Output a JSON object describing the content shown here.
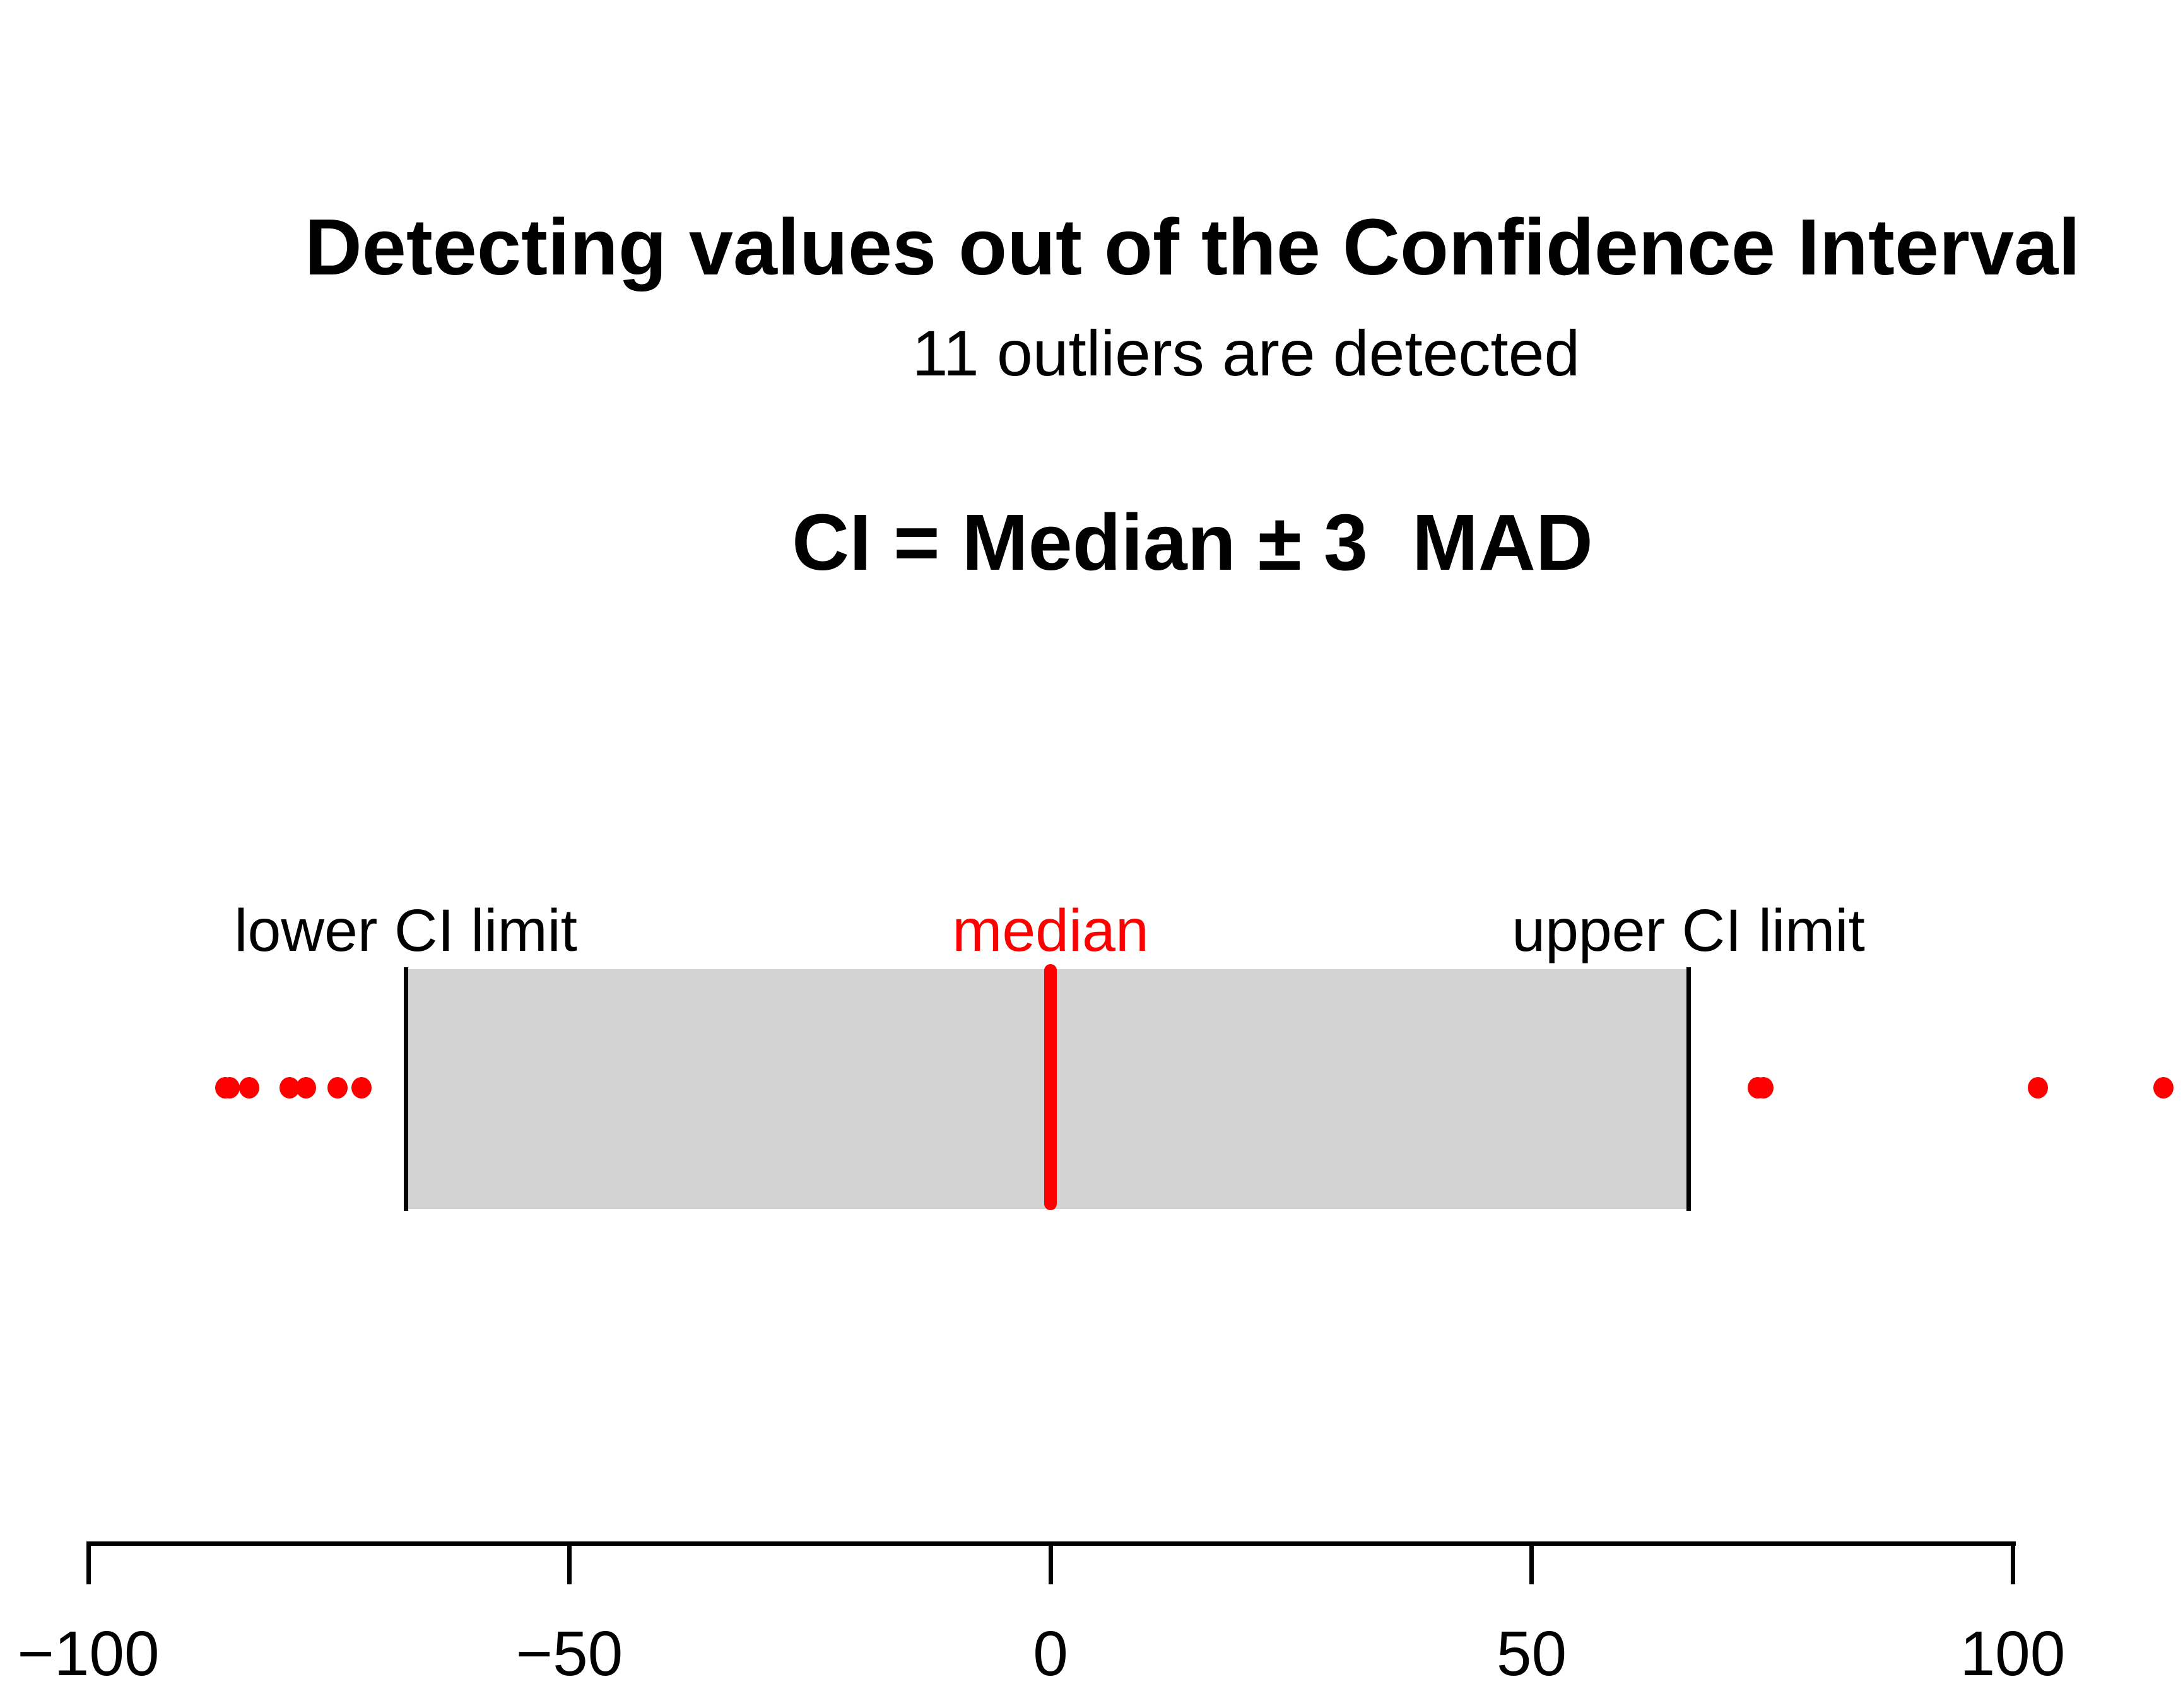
{
  "title": {
    "line1": "Detecting values out of the Confidence Interval",
    "line2": "CI = Median ± 3  MAD"
  },
  "subtitle": "11 outliers are detected",
  "annotations": {
    "lower_ci": "lower CI limit",
    "median": "median",
    "upper_ci": "upper CI limit"
  },
  "colors": {
    "outlier_point": "#FF0000",
    "median_line": "#FF0000",
    "median_label": "#FF0000",
    "ci_fill": "#D3D3D3",
    "ci_border": "#000000",
    "axis": "#000000",
    "background": "#FFFFFF",
    "text": "#000000"
  },
  "chart_data": {
    "type": "scatter",
    "title": "Detecting values out of the Confidence Interval  CI = Median ± 3  MAD",
    "subtitle": "11 outliers are detected",
    "outlier_count": 11,
    "median": 0,
    "ci_lower": -67,
    "ci_upper": 66.3,
    "outliers": [
      -85.8,
      -85.3,
      -83.3,
      -79.1,
      -77.4,
      -74.1,
      -71.6,
      73.5,
      74.1,
      102.6,
      115.7
    ],
    "xaxis": {
      "ticks": [
        {
          "value": -100,
          "label": "−100"
        },
        {
          "value": -50,
          "label": "−50"
        },
        {
          "value": 0,
          "label": "0"
        },
        {
          "value": 50,
          "label": "50"
        },
        {
          "value": 100,
          "label": "100"
        }
      ],
      "range": [
        -104,
        118
      ]
    },
    "grid": false,
    "legend": false
  }
}
